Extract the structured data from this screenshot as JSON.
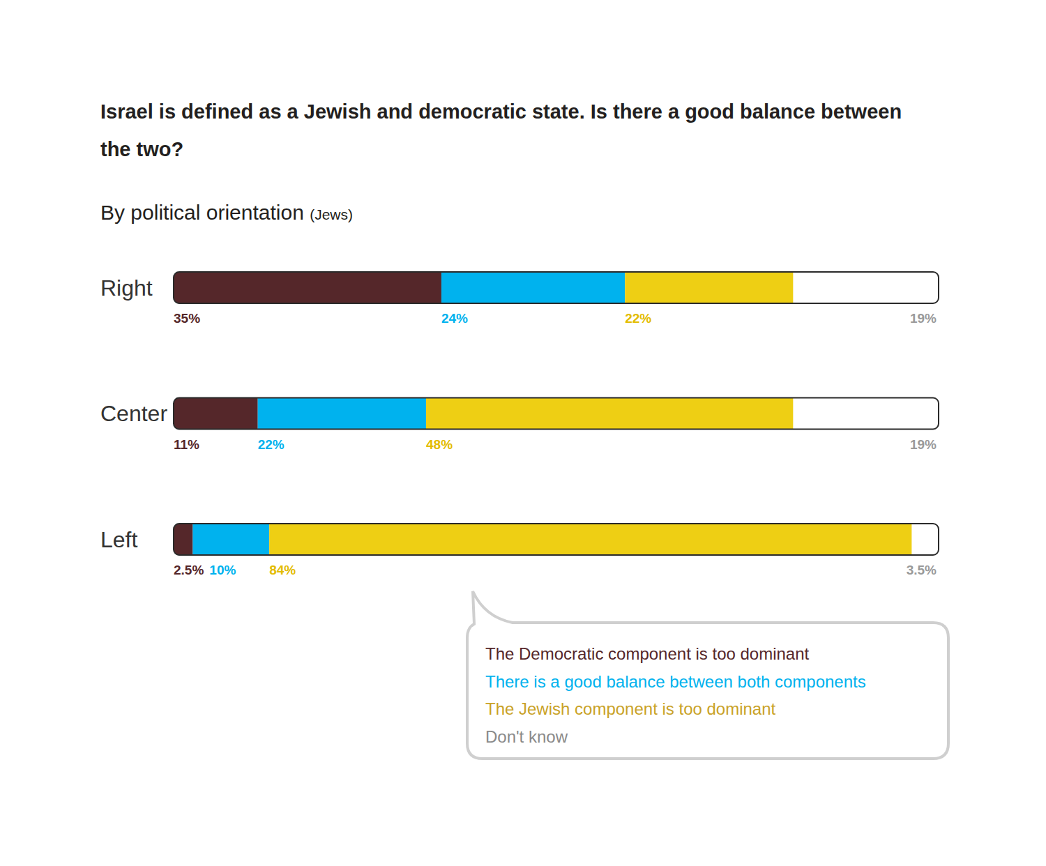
{
  "chart_data": {
    "type": "bar",
    "orientation": "horizontal",
    "stacked": true,
    "data_labels": true,
    "tick_labels": "y",
    "legend": "bottom-right",
    "title": "Israel is defined as a Jewish and democratic state. Is there a good balance between the two?",
    "subtitle": "By political orientation (Jews)",
    "categories": [
      "Right",
      "Center",
      "Left"
    ],
    "xlim": [
      0,
      100
    ],
    "series": [
      {
        "name": "The Democratic component is too dominant",
        "color": "#55272a",
        "values": [
          35,
          11,
          2.5
        ],
        "value_labels": [
          "35%",
          "11%",
          "2.5%"
        ]
      },
      {
        "name": "There is a good balance between both components",
        "color": "#00b2ee",
        "values": [
          24,
          22,
          10
        ],
        "value_labels": [
          "24%",
          "22%",
          "10%"
        ]
      },
      {
        "name": "The Jewish component is too dominant",
        "color": "#eecf14",
        "values": [
          22,
          48,
          84
        ],
        "value_labels": [
          "22%",
          "48%",
          "84%"
        ]
      },
      {
        "name": "Don't know",
        "color": "#ffffff",
        "values": [
          19,
          19,
          3.5
        ],
        "value_labels": [
          "19%",
          "19%",
          "3.5%"
        ]
      }
    ]
  }
}
